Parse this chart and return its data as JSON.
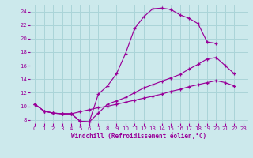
{
  "background_color": "#cce9ec",
  "grid_color": "#aad4d8",
  "line_color": "#990099",
  "xlabel": "Windchill (Refroidissement éolien,°C)",
  "xlim": [
    -0.5,
    23.5
  ],
  "ylim": [
    7.5,
    25.0
  ],
  "yticks": [
    8,
    10,
    12,
    14,
    16,
    18,
    20,
    22,
    24
  ],
  "xticks": [
    0,
    1,
    2,
    3,
    4,
    5,
    6,
    7,
    8,
    9,
    10,
    11,
    12,
    13,
    14,
    15,
    16,
    17,
    18,
    19,
    20,
    21,
    22,
    23
  ],
  "curve1_x": [
    0,
    1,
    2,
    3,
    4,
    5,
    6,
    7,
    8,
    9,
    10,
    11,
    12,
    13,
    14,
    15,
    16,
    17,
    18,
    19,
    20
  ],
  "curve1_y": [
    10.3,
    9.3,
    9.0,
    8.9,
    8.9,
    7.8,
    7.7,
    11.8,
    13.0,
    14.8,
    17.8,
    21.5,
    23.2,
    24.4,
    24.5,
    24.3,
    23.5,
    23.0,
    22.2,
    19.5,
    19.3
  ],
  "curve2_x": [
    0,
    1,
    2,
    3,
    4,
    5,
    6,
    7,
    8,
    9,
    10,
    11,
    12,
    13,
    14,
    15,
    16,
    17,
    18,
    19,
    20,
    21,
    22
  ],
  "curve2_y": [
    10.3,
    9.3,
    9.0,
    8.9,
    8.9,
    7.8,
    7.7,
    9.0,
    10.3,
    10.8,
    11.3,
    12.0,
    12.7,
    13.2,
    13.7,
    14.2,
    14.7,
    15.5,
    16.2,
    17.0,
    17.2,
    16.0,
    14.8
  ],
  "curve3_x": [
    0,
    1,
    2,
    3,
    4,
    5,
    6,
    7,
    8,
    9,
    10,
    11,
    12,
    13,
    14,
    15,
    16,
    17,
    18,
    19,
    20,
    21,
    22
  ],
  "curve3_y": [
    10.3,
    9.3,
    9.0,
    8.9,
    8.9,
    9.2,
    9.5,
    9.8,
    10.0,
    10.3,
    10.6,
    10.9,
    11.2,
    11.5,
    11.8,
    12.2,
    12.5,
    12.9,
    13.2,
    13.5,
    13.8,
    13.5,
    13.0
  ]
}
